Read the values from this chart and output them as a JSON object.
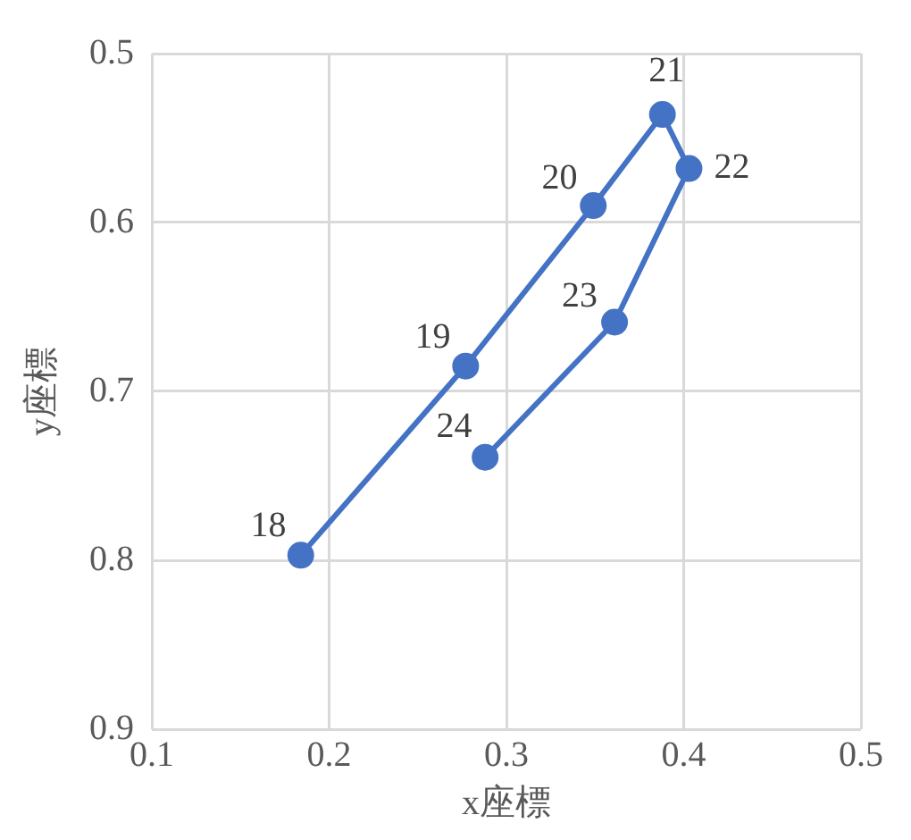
{
  "chart_data": {
    "type": "line",
    "xlabel": "x座標",
    "ylabel": "y座標",
    "series": [
      {
        "color": "#4472c4",
        "x": [
          0.184,
          0.277,
          0.349,
          0.388,
          0.403,
          0.361,
          0.288
        ],
        "values": [
          0.797,
          0.685,
          0.59,
          0.536,
          0.568,
          0.659,
          0.739
        ]
      }
    ],
    "xlim": [
      0.1,
      0.5
    ],
    "xticks": [
      0.1,
      0.2,
      0.3,
      0.4,
      0.5
    ],
    "ylim": [
      0.9,
      0.5
    ],
    "yticks": [
      0.5,
      0.6,
      0.7,
      0.8,
      0.9
    ],
    "grid": true,
    "marker": "circle",
    "line_style": "solid",
    "annotations": [
      {
        "text": "18",
        "x": 0.184,
        "y": 0.797
      },
      {
        "text": "19",
        "x": 0.277,
        "y": 0.685
      },
      {
        "text": "20",
        "x": 0.349,
        "y": 0.59
      },
      {
        "text": "21",
        "x": 0.388,
        "y": 0.536
      },
      {
        "text": "22",
        "x": 0.403,
        "y": 0.568
      },
      {
        "text": "23",
        "x": 0.361,
        "y": 0.659
      },
      {
        "text": "24",
        "x": 0.288,
        "y": 0.739
      }
    ]
  }
}
